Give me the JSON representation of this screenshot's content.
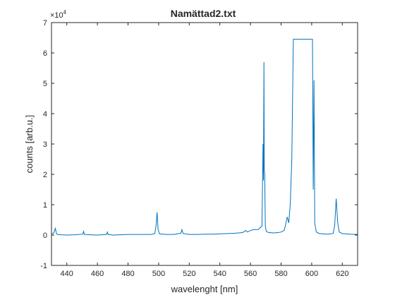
{
  "chart_data": {
    "type": "line",
    "title": "Namättad2.txt",
    "xlabel": "wavelenght [nm]",
    "ylabel": "counts [arb.u.]",
    "xlim": [
      430,
      630
    ],
    "ylim": [
      -1,
      7
    ],
    "x_ticks": [
      440,
      460,
      480,
      500,
      520,
      540,
      560,
      580,
      600,
      620
    ],
    "y_ticks": [
      -1,
      0,
      1,
      2,
      3,
      4,
      5,
      6,
      7
    ],
    "y_exponent_label": "×10",
    "y_exponent_power": "4",
    "grid": false,
    "line_color": "#0072BD",
    "series": [
      {
        "x": [
          430,
          431.5,
          432.5,
          433.3,
          434,
          436,
          440,
          445,
          450.5,
          451,
          451.5,
          455,
          460,
          466,
          466.5,
          467,
          470,
          475,
          480,
          485,
          490,
          495,
          497.5,
          498.3,
          499,
          499.6,
          500.5,
          505,
          510,
          514.5,
          515.2,
          516,
          520,
          525,
          530,
          535,
          540,
          545,
          550,
          555,
          556,
          557,
          558,
          560,
          562,
          565,
          567.5,
          568.2,
          568.5,
          568.8,
          569,
          569.3,
          569.7,
          570.3,
          572,
          575,
          578,
          580,
          582,
          583,
          584,
          585,
          586,
          587,
          588,
          600.5,
          601,
          601.5,
          602,
          603,
          605,
          610,
          614,
          615,
          616,
          617,
          618,
          620,
          625,
          630
        ],
        "y": [
          0.03,
          0.07,
          0.22,
          0.04,
          0.02,
          0.01,
          0.0,
          0.01,
          0.03,
          0.12,
          0.02,
          0.01,
          0.0,
          0.02,
          0.1,
          0.02,
          0.0,
          0.01,
          0.02,
          0.02,
          0.02,
          0.02,
          0.05,
          0.3,
          0.75,
          0.2,
          0.04,
          0.02,
          0.02,
          0.06,
          0.18,
          0.05,
          0.02,
          0.02,
          0.03,
          0.03,
          0.04,
          0.05,
          0.06,
          0.08,
          0.12,
          0.15,
          0.1,
          0.15,
          0.18,
          0.18,
          0.3,
          3.0,
          1.8,
          5.7,
          2.2,
          2.0,
          0.3,
          0.12,
          0.08,
          0.07,
          0.08,
          0.1,
          0.15,
          0.35,
          0.6,
          0.4,
          1.0,
          2.5,
          6.45,
          6.45,
          1.5,
          5.1,
          0.4,
          0.1,
          0.05,
          0.03,
          0.05,
          0.3,
          1.2,
          0.4,
          0.1,
          0.05,
          0.03,
          0.02
        ]
      }
    ]
  }
}
